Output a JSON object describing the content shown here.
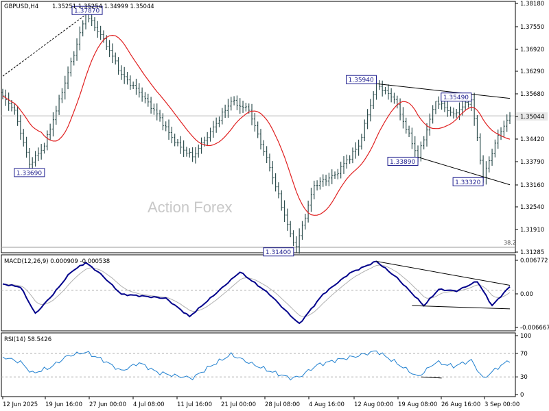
{
  "chart_data": [
    {
      "type": "candlestick",
      "symbol_label": "GBPUSD,H4",
      "ohlc_label": "1.35251 1.35254 1.34999 1.35044",
      "watermark": "Action Forex",
      "x_ticks": [
        "12 Jun 2025",
        "19 Jun 16:00",
        "27 Jun 00:00",
        "4 Jul 08:00",
        "11 Jul 16:00",
        "21 Jul 00:00",
        "28 Jul 08:00",
        "4 Aug 16:00",
        "12 Aug 00:00",
        "19 Aug 08:00",
        "26 Aug 16:00",
        "3 Sep 00:00"
      ],
      "y_ticks": [
        "1.38180",
        "1.37550",
        "1.36920",
        "1.36290",
        "1.35680",
        "1.35044",
        "1.34420",
        "1.33790",
        "1.33160",
        "1.32540",
        "1.31910",
        "1.31285"
      ],
      "ylim": [
        1.3128,
        1.3818
      ],
      "current_price": "1.35044",
      "fib_label": "38.2",
      "annotations": [
        "1.37870",
        "1.33690",
        "1.31400",
        "1.35940",
        "1.35490",
        "1.33890",
        "1.33320"
      ],
      "waypoints": [
        {
          "i": 0,
          "v": 1.356
        },
        {
          "i": 4,
          "v": 1.352
        },
        {
          "i": 9,
          "v": 1.3369
        },
        {
          "i": 14,
          "v": 1.342
        },
        {
          "i": 20,
          "v": 1.357
        },
        {
          "i": 28,
          "v": 1.3787
        },
        {
          "i": 34,
          "v": 1.372
        },
        {
          "i": 40,
          "v": 1.362
        },
        {
          "i": 46,
          "v": 1.357
        },
        {
          "i": 52,
          "v": 1.351
        },
        {
          "i": 58,
          "v": 1.343
        },
        {
          "i": 64,
          "v": 1.339
        },
        {
          "i": 70,
          "v": 1.346
        },
        {
          "i": 77,
          "v": 1.3545
        },
        {
          "i": 83,
          "v": 1.352
        },
        {
          "i": 90,
          "v": 1.336
        },
        {
          "i": 97,
          "v": 1.3175
        },
        {
          "i": 99,
          "v": 1.314
        },
        {
          "i": 105,
          "v": 1.331
        },
        {
          "i": 112,
          "v": 1.334
        },
        {
          "i": 120,
          "v": 1.342
        },
        {
          "i": 126,
          "v": 1.3594
        },
        {
          "i": 132,
          "v": 1.355
        },
        {
          "i": 140,
          "v": 1.3389
        },
        {
          "i": 146,
          "v": 1.3545
        },
        {
          "i": 152,
          "v": 1.351
        },
        {
          "i": 158,
          "v": 1.3549
        },
        {
          "i": 162,
          "v": 1.3332
        },
        {
          "i": 167,
          "v": 1.345
        },
        {
          "i": 171,
          "v": 1.3504
        }
      ],
      "series": [
        {
          "name": "",
          "role": "price",
          "color": "#2f4f4f"
        },
        {
          "name": "",
          "role": "moving-average",
          "color": "#e02020"
        }
      ]
    },
    {
      "type": "line",
      "label": "MACD(12,26,9) 0.000909 -0.000538",
      "y_ticks": [
        "0.006772",
        "0.00",
        "-0.006667"
      ],
      "zero_label": "0.00",
      "waypoints": [
        {
          "i": 0,
          "v": 0.0015
        },
        {
          "i": 6,
          "v": 0.0008
        },
        {
          "i": 11,
          "v": -0.0058
        },
        {
          "i": 17,
          "v": -0.001
        },
        {
          "i": 23,
          "v": 0.0045
        },
        {
          "i": 28,
          "v": 0.0068
        },
        {
          "i": 33,
          "v": 0.004
        },
        {
          "i": 40,
          "v": -0.001
        },
        {
          "i": 48,
          "v": -0.0015
        },
        {
          "i": 55,
          "v": -0.002
        },
        {
          "i": 63,
          "v": -0.0065
        },
        {
          "i": 70,
          "v": -0.002
        },
        {
          "i": 80,
          "v": 0.0045
        },
        {
          "i": 90,
          "v": -0.001
        },
        {
          "i": 96,
          "v": -0.0055
        },
        {
          "i": 100,
          "v": -0.0083
        },
        {
          "i": 108,
          "v": -0.001
        },
        {
          "i": 117,
          "v": 0.0042
        },
        {
          "i": 126,
          "v": 0.0071
        },
        {
          "i": 133,
          "v": 0.003
        },
        {
          "i": 142,
          "v": -0.0038
        },
        {
          "i": 147,
          "v": 0.0002
        },
        {
          "i": 153,
          "v": -0.0002
        },
        {
          "i": 160,
          "v": 0.0022
        },
        {
          "i": 165,
          "v": -0.0038
        },
        {
          "i": 171,
          "v": 0.0009
        }
      ],
      "series": [
        {
          "name": "",
          "role": "macd",
          "color": "#00008b"
        },
        {
          "name": "",
          "role": "signal",
          "color": "#b0b0b0"
        }
      ]
    },
    {
      "type": "line",
      "label": "RSI(14) 58.5426",
      "y_ticks": [
        "100",
        "70",
        "30",
        "0"
      ],
      "ylim": [
        0,
        100
      ],
      "levels": [
        70,
        30
      ],
      "waypoints": [
        {
          "i": 0,
          "v": 64
        },
        {
          "i": 6,
          "v": 55
        },
        {
          "i": 10,
          "v": 36
        },
        {
          "i": 16,
          "v": 46
        },
        {
          "i": 22,
          "v": 66
        },
        {
          "i": 28,
          "v": 72
        },
        {
          "i": 34,
          "v": 58
        },
        {
          "i": 40,
          "v": 40
        },
        {
          "i": 46,
          "v": 54
        },
        {
          "i": 52,
          "v": 38
        },
        {
          "i": 58,
          "v": 32
        },
        {
          "i": 64,
          "v": 28
        },
        {
          "i": 70,
          "v": 48
        },
        {
          "i": 77,
          "v": 68
        },
        {
          "i": 84,
          "v": 52
        },
        {
          "i": 90,
          "v": 40
        },
        {
          "i": 97,
          "v": 28
        },
        {
          "i": 100,
          "v": 30
        },
        {
          "i": 106,
          "v": 50
        },
        {
          "i": 112,
          "v": 58
        },
        {
          "i": 120,
          "v": 66
        },
        {
          "i": 126,
          "v": 74
        },
        {
          "i": 132,
          "v": 56
        },
        {
          "i": 140,
          "v": 30
        },
        {
          "i": 146,
          "v": 55
        },
        {
          "i": 152,
          "v": 48
        },
        {
          "i": 158,
          "v": 58
        },
        {
          "i": 162,
          "v": 27
        },
        {
          "i": 167,
          "v": 46
        },
        {
          "i": 171,
          "v": 58.5
        }
      ],
      "series": [
        {
          "name": "",
          "role": "rsi",
          "color": "#2080d0"
        }
      ]
    }
  ]
}
